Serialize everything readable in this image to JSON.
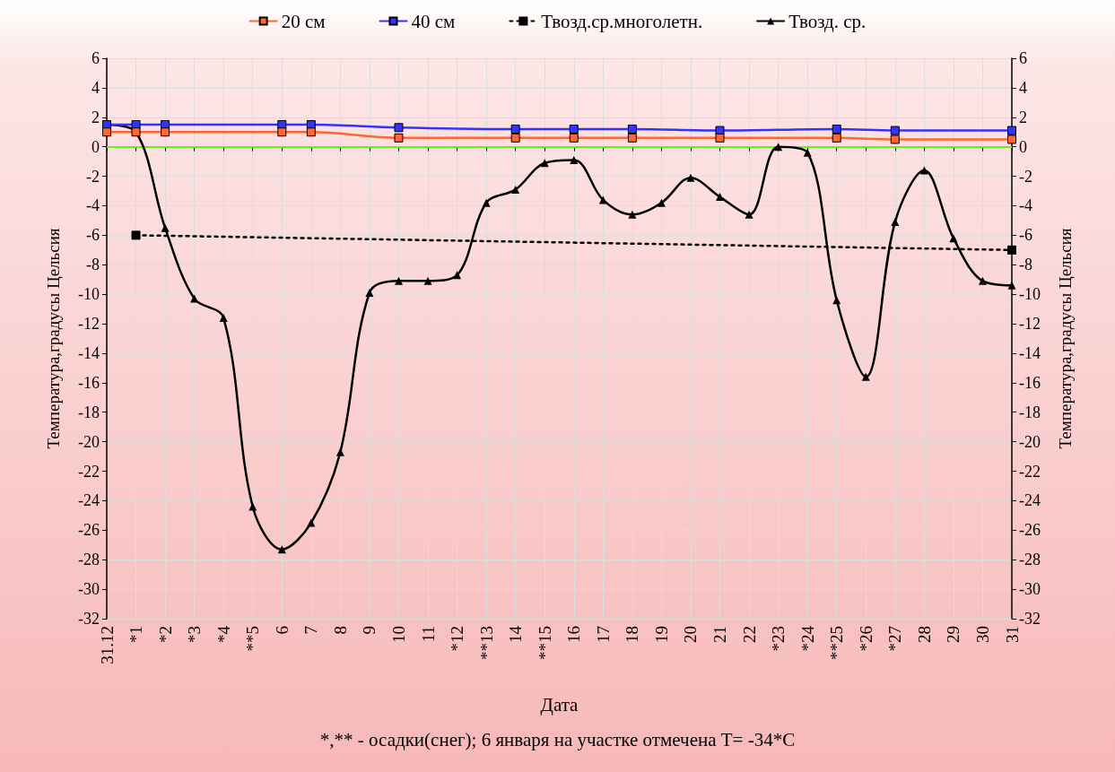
{
  "chart_data": {
    "type": "line",
    "xlabel": "Дата",
    "ylabel": "Температура,градусы Цельсия",
    "y2label": "Температура,градусы Цельсия",
    "annotations": [
      "*,** - осадки(снег); 6 января на участке отмечена T= -34*C"
    ],
    "categories": [
      "31.12",
      "*1",
      "*2",
      "*3",
      "*4",
      "**5",
      "6",
      "7",
      "8",
      "9",
      "10",
      "11",
      "*12",
      "**13",
      "14",
      "**15",
      "16",
      "17",
      "18",
      "19",
      "20",
      "21",
      "22",
      "*23",
      "*24",
      "**25",
      "*26",
      "*27",
      "28",
      "29",
      "30",
      "31"
    ],
    "series": [
      {
        "name": "20 см",
        "color": "#ff6633",
        "marker": "square",
        "line_style": "solid",
        "values": [
          1.0,
          1.0,
          1.0,
          null,
          null,
          null,
          1.0,
          1.0,
          null,
          null,
          0.6,
          null,
          null,
          null,
          0.6,
          null,
          0.6,
          null,
          0.6,
          null,
          null,
          0.6,
          null,
          null,
          null,
          0.6,
          null,
          0.5,
          null,
          null,
          null,
          0.5
        ]
      },
      {
        "name": "40 см",
        "color": "#3333ff",
        "marker": "square",
        "line_style": "solid",
        "values": [
          1.5,
          1.5,
          1.5,
          null,
          null,
          null,
          1.5,
          1.5,
          null,
          null,
          1.3,
          null,
          null,
          null,
          1.2,
          null,
          1.2,
          null,
          1.2,
          null,
          null,
          1.1,
          null,
          null,
          null,
          1.2,
          null,
          1.1,
          null,
          null,
          null,
          1.1
        ]
      },
      {
        "name": "Твозд.ср.многолетн.",
        "color": "#000000",
        "marker": "square",
        "line_style": "dotted",
        "values": [
          null,
          -6,
          null,
          null,
          null,
          null,
          null,
          null,
          null,
          null,
          null,
          null,
          null,
          null,
          null,
          null,
          null,
          null,
          null,
          null,
          null,
          null,
          null,
          null,
          null,
          null,
          null,
          null,
          null,
          null,
          null,
          -7
        ]
      },
      {
        "name": "Твозд. ср.",
        "color": "#000000",
        "marker": "triangle",
        "line_style": "solid",
        "values": [
          1.5,
          1.0,
          -5.5,
          -10.3,
          -11.6,
          -24.4,
          -27.3,
          -25.5,
          -20.7,
          -9.9,
          -9.1,
          -9.1,
          -8.7,
          -3.8,
          -2.9,
          -1.1,
          -0.9,
          -3.6,
          -4.6,
          -3.8,
          -2.1,
          -3.4,
          -4.6,
          0,
          -0.4,
          -10.4,
          -15.6,
          -5.1,
          -1.6,
          -6.2,
          -9.1,
          -9.4
        ]
      }
    ],
    "ylim": [
      -32,
      6
    ],
    "yticks": [
      -32,
      -30,
      -28,
      -26,
      -24,
      -22,
      -20,
      -18,
      -16,
      -14,
      -12,
      -10,
      -8,
      -6,
      -4,
      -2,
      0,
      2,
      4,
      6
    ],
    "y2lim": [
      -32,
      6
    ],
    "y2ticks": [
      -32,
      -30,
      -28,
      -26,
      -24,
      -22,
      -20,
      -18,
      -16,
      -14,
      -12,
      -10,
      -8,
      -6,
      -4,
      -2,
      0,
      2,
      4,
      6
    ],
    "ref_lines": [
      {
        "axis": "y",
        "value": 0,
        "color": "#66ee22"
      }
    ],
    "grid": true,
    "legend": "top"
  }
}
